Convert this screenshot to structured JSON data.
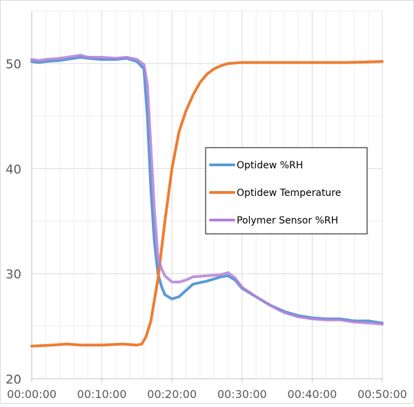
{
  "chart_data": {
    "type": "line",
    "title": "",
    "xlabel": "",
    "ylabel": "",
    "xlim": [
      0,
      50
    ],
    "ylim": [
      20,
      55
    ],
    "x_ticks": [
      "00:00:00",
      "00:10:00",
      "00:20:00",
      "00:30:00",
      "00:40:00",
      "00:50:00"
    ],
    "x_tick_values": [
      0,
      10,
      20,
      30,
      40,
      50
    ],
    "y_ticks": [
      "20",
      "30",
      "40",
      "50"
    ],
    "y_tick_values": [
      20,
      30,
      40,
      50
    ],
    "grid": {
      "major": true,
      "minor": true,
      "x_minor_step_minutes": 2,
      "y_minor_step": 5
    },
    "legend_position": "center-right",
    "series": [
      {
        "name": "Optidew %RH",
        "color": "#5B9BD5",
        "x": [
          0,
          1,
          2,
          4,
          6,
          7,
          8,
          10,
          12,
          13.5,
          15,
          16,
          16.5,
          17,
          17.5,
          18,
          18.5,
          19,
          20,
          21,
          22,
          23,
          25,
          27,
          28,
          29,
          30,
          32,
          34,
          36,
          38,
          40,
          42,
          44,
          46,
          48,
          50
        ],
        "y": [
          50.2,
          50.1,
          50.2,
          50.3,
          50.5,
          50.6,
          50.5,
          50.4,
          50.4,
          50.5,
          50.2,
          49.5,
          45,
          38,
          33,
          30,
          28.8,
          28,
          27.6,
          27.8,
          28.4,
          29,
          29.3,
          29.7,
          29.8,
          29.4,
          28.6,
          27.8,
          27,
          26.4,
          26,
          25.8,
          25.7,
          25.7,
          25.5,
          25.5,
          25.3
        ]
      },
      {
        "name": "Optidew Temperature",
        "color": "#ED7D31",
        "x": [
          0,
          3,
          5,
          7,
          10,
          13,
          15,
          15.7,
          16.3,
          17,
          18,
          19,
          20,
          21,
          22,
          23,
          24,
          25,
          26,
          27,
          28,
          30,
          35,
          40,
          45,
          50
        ],
        "y": [
          23.1,
          23.2,
          23.3,
          23.2,
          23.2,
          23.3,
          23.2,
          23.3,
          24,
          25.5,
          29.5,
          35,
          40,
          43.5,
          45.5,
          47,
          48.2,
          49,
          49.5,
          49.8,
          50,
          50.1,
          50.1,
          50.1,
          50.1,
          50.2
        ]
      },
      {
        "name": "Polymer Sensor %RH",
        "color": "#B381D9",
        "x": [
          0,
          1,
          2,
          4,
          6,
          7,
          8,
          10,
          12,
          13.5,
          15,
          16,
          16.5,
          17,
          17.5,
          18,
          18.5,
          19,
          20,
          21,
          22,
          23,
          25,
          27,
          28,
          29,
          30,
          32,
          34,
          36,
          38,
          40,
          42,
          44,
          46,
          48,
          50
        ],
        "y": [
          50.4,
          50.3,
          50.4,
          50.5,
          50.7,
          50.8,
          50.6,
          50.6,
          50.5,
          50.6,
          50.4,
          49.9,
          48,
          42,
          36,
          31.5,
          30.5,
          29.8,
          29.2,
          29.2,
          29.4,
          29.7,
          29.8,
          29.9,
          30.1,
          29.6,
          28.7,
          27.8,
          27,
          26.3,
          25.9,
          25.7,
          25.6,
          25.6,
          25.4,
          25.3,
          25.2
        ]
      }
    ]
  }
}
